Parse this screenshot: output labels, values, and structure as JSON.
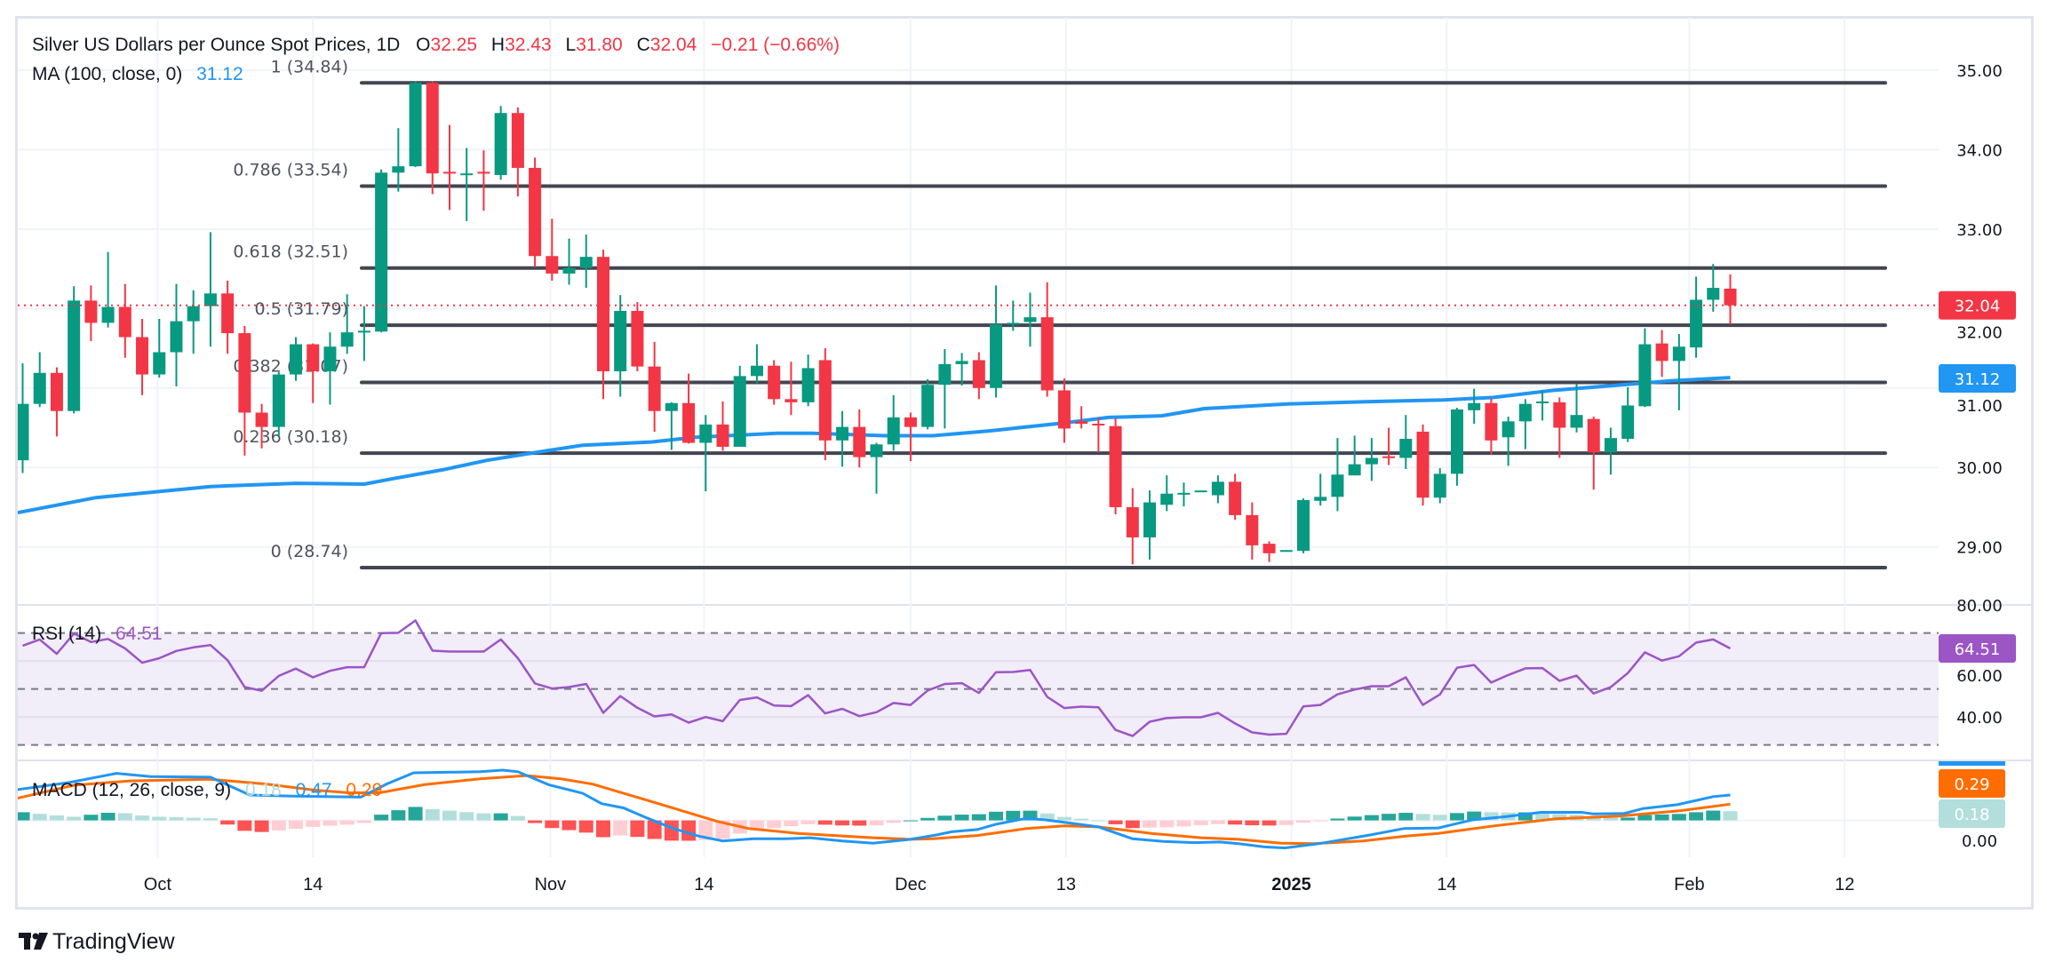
{
  "header": {
    "title": "Silver US Dollars per Ounce Spot Prices, 1D",
    "o_label": "O",
    "o": "32.25",
    "h_label": "H",
    "h": "32.43",
    "l_label": "L",
    "l": "31.80",
    "c_label": "C",
    "c": "32.04",
    "change": "−0.21 (−0.66%)"
  },
  "ma_legend": {
    "label": "MA (100, close, 0)",
    "value": "31.12"
  },
  "rsi_legend": {
    "label": "RSI (14)",
    "value": "64.51"
  },
  "macd_legend": {
    "label": "MACD (12, 26, close, 9)",
    "hist": "0.18",
    "macd": "0.47",
    "signal": "0.29"
  },
  "price_axis": [
    "35.00",
    "34.00",
    "33.00",
    "32.00",
    "31.00",
    "30.00",
    "29.00"
  ],
  "rsi_axis": [
    "80.00",
    "60.00",
    "40.00"
  ],
  "macd_axis": [
    "0.00"
  ],
  "badges": {
    "last": "32.04",
    "ma": "31.12",
    "rsi": "64.51",
    "signal": "0.29",
    "hist": "0.18"
  },
  "fib": [
    {
      "label": "1 (34.84)",
      "price": 34.84
    },
    {
      "label": "0.786 (33.54)",
      "price": 33.54
    },
    {
      "label": "0.618 (32.51)",
      "price": 32.51
    },
    {
      "label": "0.5 (31.79)",
      "price": 31.79
    },
    {
      "label": "0.382 (31.07)",
      "price": 31.07
    },
    {
      "label": "0.236 (30.18)",
      "price": 30.18
    },
    {
      "label": "0 (28.74)",
      "price": 28.74
    }
  ],
  "time_axis": [
    {
      "label": "Oct",
      "index": 7.9,
      "bold": false
    },
    {
      "label": "14",
      "index": 17.0,
      "bold": false
    },
    {
      "label": "Nov",
      "index": 30.9,
      "bold": false
    },
    {
      "label": "14",
      "index": 39.9,
      "bold": false
    },
    {
      "label": "Dec",
      "index": 52.0,
      "bold": false
    },
    {
      "label": "13",
      "index": 61.1,
      "bold": false
    },
    {
      "label": "2025",
      "index": 74.3,
      "bold": true
    },
    {
      "label": "14",
      "index": 83.4,
      "bold": false
    },
    {
      "label": "Feb",
      "index": 97.6,
      "bold": false
    },
    {
      "label": "12",
      "index": 106.7,
      "bold": false
    }
  ],
  "logo": "TradingView",
  "colors": {
    "up": "#089981",
    "down": "#f23645",
    "fib": "#434651",
    "ma": "#2196f3",
    "rsi": "#9c55c5",
    "rsi_band": "#f1edf9",
    "macd": "#2196f3",
    "signal": "#ff6d00",
    "hist_up_strong": "#26a69a",
    "hist_up_weak": "#b2dfdb",
    "hist_down_strong": "#ff5252",
    "hist_down_weak": "#ffcdd2",
    "grid": "#f0f3fa",
    "border": "#e0e3eb"
  },
  "chart_data": {
    "type": "candlestick",
    "title": "Silver US Dollars per Ounce Spot Prices, 1D",
    "price_ylim": [
      28.27,
      35.67
    ],
    "last_price": 32.04,
    "candles_ohlc": [
      [
        30.09,
        31.31,
        29.93,
        30.8
      ],
      [
        30.8,
        31.45,
        30.76,
        31.19
      ],
      [
        31.19,
        31.26,
        30.39,
        30.71
      ],
      [
        30.71,
        32.28,
        30.68,
        32.1
      ],
      [
        32.1,
        32.29,
        31.59,
        31.82
      ],
      [
        31.82,
        32.71,
        31.76,
        32.02
      ],
      [
        32.02,
        32.31,
        31.38,
        31.64
      ],
      [
        31.64,
        31.87,
        30.91,
        31.17
      ],
      [
        31.17,
        31.87,
        31.13,
        31.45
      ],
      [
        31.45,
        32.31,
        31.02,
        31.84
      ],
      [
        31.84,
        32.23,
        31.43,
        32.03
      ],
      [
        32.03,
        32.96,
        31.52,
        32.19
      ],
      [
        32.19,
        32.35,
        31.43,
        31.69
      ],
      [
        31.69,
        31.78,
        30.15,
        30.69
      ],
      [
        30.69,
        30.8,
        30.24,
        30.51
      ],
      [
        30.51,
        31.2,
        30.39,
        31.17
      ],
      [
        31.17,
        31.64,
        31.09,
        31.55
      ],
      [
        31.55,
        31.56,
        30.81,
        31.21
      ],
      [
        31.21,
        31.7,
        30.79,
        31.52
      ],
      [
        31.52,
        32.18,
        31.43,
        31.7
      ],
      [
        31.7,
        32.03,
        31.34,
        31.72
      ],
      [
        31.71,
        33.75,
        31.7,
        33.71
      ],
      [
        33.71,
        34.27,
        33.47,
        33.79
      ],
      [
        33.79,
        34.86,
        33.78,
        34.84
      ],
      [
        34.84,
        34.86,
        33.44,
        33.7
      ],
      [
        33.72,
        34.31,
        33.24,
        33.7
      ],
      [
        33.68,
        34.02,
        33.1,
        33.7
      ],
      [
        33.72,
        33.99,
        33.23,
        33.7
      ],
      [
        33.68,
        34.55,
        33.62,
        34.46
      ],
      [
        34.46,
        34.53,
        33.41,
        33.77
      ],
      [
        33.77,
        33.9,
        32.52,
        32.66
      ],
      [
        32.66,
        33.13,
        32.35,
        32.44
      ],
      [
        32.44,
        32.88,
        32.3,
        32.51
      ],
      [
        32.51,
        32.93,
        32.26,
        32.65
      ],
      [
        32.65,
        32.74,
        30.86,
        31.21
      ],
      [
        31.21,
        32.17,
        30.89,
        31.97
      ],
      [
        31.97,
        32.08,
        31.21,
        31.27
      ],
      [
        31.27,
        31.58,
        30.45,
        30.71
      ],
      [
        30.71,
        30.82,
        30.22,
        30.81
      ],
      [
        30.81,
        31.18,
        30.3,
        30.31
      ],
      [
        30.31,
        30.66,
        29.7,
        30.54
      ],
      [
        30.54,
        30.83,
        30.21,
        30.26
      ],
      [
        30.26,
        31.28,
        30.26,
        31.15
      ],
      [
        31.15,
        31.55,
        31.06,
        31.28
      ],
      [
        31.28,
        31.35,
        30.79,
        30.86
      ],
      [
        30.86,
        31.33,
        30.66,
        30.82
      ],
      [
        30.82,
        31.42,
        30.77,
        31.25
      ],
      [
        31.35,
        31.5,
        30.09,
        30.34
      ],
      [
        30.34,
        30.71,
        30.01,
        30.51
      ],
      [
        30.51,
        30.73,
        30.0,
        30.13
      ],
      [
        30.13,
        30.31,
        29.67,
        30.29
      ],
      [
        30.29,
        30.91,
        30.21,
        30.63
      ],
      [
        30.63,
        30.69,
        30.08,
        30.51
      ],
      [
        30.51,
        31.11,
        30.48,
        31.04
      ],
      [
        31.04,
        31.49,
        30.49,
        31.3
      ],
      [
        31.3,
        31.44,
        31.03,
        31.34
      ],
      [
        31.35,
        31.45,
        30.86,
        31.0
      ],
      [
        31.0,
        32.29,
        30.88,
        31.8
      ],
      [
        31.8,
        32.1,
        31.72,
        31.82
      ],
      [
        31.83,
        32.2,
        31.52,
        31.89
      ],
      [
        31.89,
        32.33,
        30.89,
        30.97
      ],
      [
        30.97,
        31.12,
        30.31,
        30.49
      ],
      [
        30.58,
        30.77,
        30.49,
        30.55
      ],
      [
        30.55,
        30.63,
        30.19,
        30.54
      ],
      [
        30.52,
        30.62,
        29.41,
        29.5
      ],
      [
        29.5,
        29.74,
        28.78,
        29.12
      ],
      [
        29.12,
        29.71,
        28.84,
        29.56
      ],
      [
        29.53,
        29.9,
        29.45,
        29.67
      ],
      [
        29.66,
        29.81,
        29.51,
        29.68
      ],
      [
        29.7,
        29.71,
        29.7,
        29.71
      ],
      [
        29.65,
        29.9,
        29.55,
        29.82
      ],
      [
        29.82,
        29.92,
        29.34,
        29.4
      ],
      [
        29.4,
        29.56,
        28.84,
        29.02
      ],
      [
        29.04,
        29.07,
        28.81,
        28.92
      ],
      [
        28.95,
        28.96,
        28.94,
        28.96
      ],
      [
        28.95,
        29.61,
        28.92,
        29.59
      ],
      [
        29.58,
        29.92,
        29.52,
        29.63
      ],
      [
        29.63,
        30.37,
        29.45,
        29.91
      ],
      [
        29.9,
        30.4,
        29.9,
        30.04
      ],
      [
        30.04,
        30.37,
        29.83,
        30.12
      ],
      [
        30.14,
        30.5,
        30.03,
        30.12
      ],
      [
        30.12,
        30.66,
        29.98,
        30.36
      ],
      [
        30.45,
        30.54,
        29.52,
        29.62
      ],
      [
        29.62,
        29.99,
        29.55,
        29.92
      ],
      [
        29.92,
        30.75,
        29.77,
        30.73
      ],
      [
        30.72,
        30.99,
        30.55,
        30.81
      ],
      [
        30.81,
        30.87,
        30.16,
        30.34
      ],
      [
        30.38,
        30.64,
        30.02,
        30.58
      ],
      [
        30.58,
        30.86,
        30.23,
        30.8
      ],
      [
        30.82,
        30.97,
        30.59,
        30.83
      ],
      [
        30.82,
        30.88,
        30.12,
        30.5
      ],
      [
        30.5,
        31.05,
        30.44,
        30.66
      ],
      [
        30.61,
        30.64,
        29.72,
        30.19
      ],
      [
        30.19,
        30.5,
        29.91,
        30.37
      ],
      [
        30.36,
        31.01,
        30.32,
        30.78
      ],
      [
        30.77,
        31.75,
        30.76,
        31.55
      ],
      [
        31.56,
        31.73,
        31.14,
        31.34
      ],
      [
        31.34,
        31.68,
        30.72,
        31.52
      ],
      [
        31.51,
        32.4,
        31.38,
        32.11
      ],
      [
        32.11,
        32.56,
        31.96,
        32.26
      ],
      [
        32.25,
        32.43,
        31.8,
        32.04
      ]
    ],
    "ma100": [
      [
        -0.3,
        29.43
      ],
      [
        4.3,
        29.62
      ],
      [
        11,
        29.76
      ],
      [
        16,
        29.8
      ],
      [
        20,
        29.79
      ],
      [
        21.7,
        29.86
      ],
      [
        24.6,
        29.97
      ],
      [
        27.2,
        30.09
      ],
      [
        30.7,
        30.21
      ],
      [
        32.8,
        30.28
      ],
      [
        36.8,
        30.32
      ],
      [
        39.4,
        30.38
      ],
      [
        44.2,
        30.43
      ],
      [
        46.2,
        30.43
      ],
      [
        50.5,
        30.4
      ],
      [
        53.3,
        30.4
      ],
      [
        56.6,
        30.46
      ],
      [
        61,
        30.56
      ],
      [
        63.6,
        30.63
      ],
      [
        66.7,
        30.65
      ],
      [
        69.2,
        30.74
      ],
      [
        74.1,
        30.8
      ],
      [
        79.2,
        30.83
      ],
      [
        83.2,
        30.85
      ],
      [
        86.1,
        30.88
      ],
      [
        89.6,
        30.97
      ],
      [
        93.1,
        31.03
      ],
      [
        96.5,
        31.09
      ],
      [
        100,
        31.13
      ]
    ],
    "rsi_ylim": [
      24.5,
      80.06
    ],
    "rsi_levels": [
      70,
      50,
      30
    ],
    "rsi": [
      65.5,
      67.7,
      62.6,
      69.8,
      66.8,
      67.9,
      64.5,
      59.4,
      61.0,
      63.6,
      64.9,
      65.7,
      60.3,
      50.7,
      49.4,
      54.7,
      57.3,
      54.2,
      56.5,
      57.8,
      57.8,
      70.0,
      70.1,
      74.5,
      63.7,
      63.4,
      63.4,
      63.4,
      67.7,
      61.0,
      52.0,
      50.2,
      50.7,
      51.8,
      41.5,
      47.5,
      43.3,
      40.2,
      40.9,
      38.0,
      40.0,
      38.5,
      46.1,
      47.0,
      44.1,
      43.9,
      47.8,
      41.3,
      42.9,
      40.3,
      41.7,
      45.0,
      44.3,
      49.5,
      51.8,
      52.1,
      48.6,
      56.0,
      56.1,
      56.8,
      47.2,
      43.2,
      43.7,
      43.5,
      35.4,
      33.2,
      38.3,
      39.6,
      39.9,
      39.9,
      41.5,
      37.7,
      34.5,
      33.7,
      34.0,
      43.8,
      44.3,
      48.1,
      49.8,
      51.0,
      51.0,
      54.2,
      44.3,
      48.1,
      57.6,
      58.6,
      52.3,
      55.0,
      57.4,
      57.5,
      52.9,
      54.8,
      48.4,
      50.7,
      55.7,
      63.1,
      60.2,
      61.7,
      66.6,
      67.7,
      64.51
    ],
    "macd_ylim": [
      -0.68,
      1.11
    ],
    "macd": [
      [
        -0.3,
        0.57
      ],
      [
        2.7,
        0.7
      ],
      [
        5.5,
        0.87
      ],
      [
        7.5,
        0.81
      ],
      [
        11,
        0.8
      ],
      [
        13.3,
        0.47
      ],
      [
        15.8,
        0.45
      ],
      [
        19.8,
        0.43
      ],
      [
        21.3,
        0.67
      ],
      [
        22.9,
        0.88
      ],
      [
        26.8,
        0.9
      ],
      [
        28.1,
        0.93
      ],
      [
        29,
        0.9
      ],
      [
        30.8,
        0.66
      ],
      [
        32.8,
        0.5
      ],
      [
        33.9,
        0.31
      ],
      [
        35.2,
        0.23
      ],
      [
        36.6,
        0.04
      ],
      [
        38.1,
        -0.15
      ],
      [
        39.6,
        -0.29
      ],
      [
        41,
        -0.38
      ],
      [
        42.8,
        -0.34
      ],
      [
        44.7,
        -0.34
      ],
      [
        46.1,
        -0.32
      ],
      [
        48,
        -0.38
      ],
      [
        49.8,
        -0.42
      ],
      [
        52,
        -0.35
      ],
      [
        53.5,
        -0.27
      ],
      [
        54.4,
        -0.21
      ],
      [
        55.9,
        -0.17
      ],
      [
        57,
        -0.07
      ],
      [
        58.8,
        0.04
      ],
      [
        59.9,
        0.01
      ],
      [
        61.1,
        -0.04
      ],
      [
        63,
        -0.12
      ],
      [
        65,
        -0.34
      ],
      [
        66.8,
        -0.39
      ],
      [
        68.6,
        -0.41
      ],
      [
        70.1,
        -0.4
      ],
      [
        71.2,
        -0.43
      ],
      [
        72.7,
        -0.49
      ],
      [
        73.9,
        -0.51
      ],
      [
        75.9,
        -0.43
      ],
      [
        78.9,
        -0.27
      ],
      [
        80.9,
        -0.15
      ],
      [
        82.9,
        -0.14
      ],
      [
        84.9,
        0.01
      ],
      [
        86.9,
        0.07
      ],
      [
        88.9,
        0.15
      ],
      [
        91.3,
        0.15
      ],
      [
        92,
        0.12
      ],
      [
        93.8,
        0.13
      ],
      [
        94.9,
        0.22
      ],
      [
        96.9,
        0.29
      ],
      [
        99,
        0.44
      ],
      [
        100,
        0.47
      ]
    ],
    "signal": [
      [
        -0.3,
        0.41
      ],
      [
        3,
        0.65
      ],
      [
        6.3,
        0.73
      ],
      [
        11,
        0.76
      ],
      [
        14.3,
        0.67
      ],
      [
        17.1,
        0.56
      ],
      [
        19.1,
        0.51
      ],
      [
        20.9,
        0.51
      ],
      [
        23.5,
        0.66
      ],
      [
        26.8,
        0.77
      ],
      [
        29.5,
        0.83
      ],
      [
        31.5,
        0.77
      ],
      [
        33.4,
        0.67
      ],
      [
        36.6,
        0.37
      ],
      [
        40.7,
        -0.02
      ],
      [
        42.5,
        -0.15
      ],
      [
        45.4,
        -0.24
      ],
      [
        49.8,
        -0.32
      ],
      [
        52,
        -0.35
      ],
      [
        53.3,
        -0.34
      ],
      [
        55.9,
        -0.28
      ],
      [
        58.8,
        -0.15
      ],
      [
        61,
        -0.1
      ],
      [
        63,
        -0.12
      ],
      [
        66.1,
        -0.24
      ],
      [
        69,
        -0.32
      ],
      [
        71.2,
        -0.35
      ],
      [
        73.7,
        -0.42
      ],
      [
        75.6,
        -0.43
      ],
      [
        78.5,
        -0.38
      ],
      [
        81,
        -0.29
      ],
      [
        82.9,
        -0.24
      ],
      [
        86.2,
        -0.1
      ],
      [
        89.8,
        0.03
      ],
      [
        93.5,
        0.08
      ],
      [
        97.1,
        0.18
      ],
      [
        100,
        0.3
      ]
    ]
  }
}
